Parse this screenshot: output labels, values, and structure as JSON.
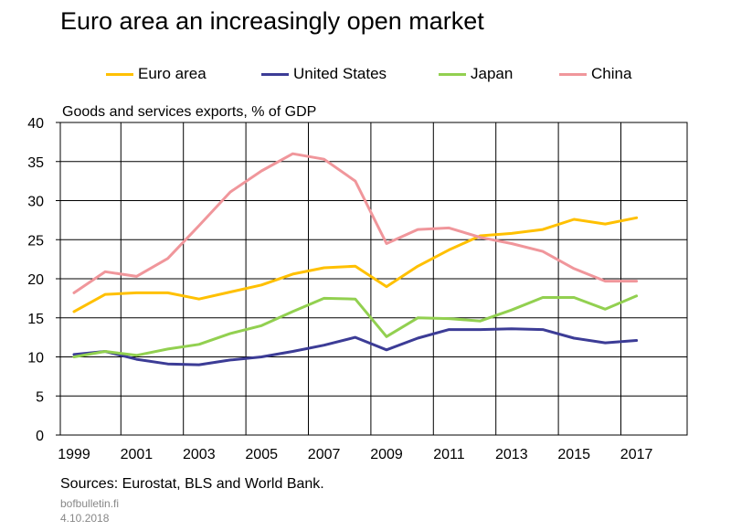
{
  "title": "Euro area an increasingly open market",
  "source_note": "Sources: Eurostat, BLS and World Bank.",
  "site": "bofbulletin.fi",
  "date": "4.10.2018",
  "chart_data": {
    "type": "line",
    "title": "Euro area an increasingly open market",
    "ylabel": "Goods and services exports, % of GDP",
    "xlabel": "",
    "ylim": [
      0,
      40
    ],
    "xlim": [
      1999,
      2018
    ],
    "yticks": [
      0,
      5,
      10,
      15,
      20,
      25,
      30,
      35,
      40
    ],
    "xticks": [
      1999,
      2001,
      2003,
      2005,
      2007,
      2009,
      2011,
      2013,
      2015,
      2017
    ],
    "grid": true,
    "legend_position": "top",
    "x": [
      1999,
      2000,
      2001,
      2002,
      2003,
      2004,
      2005,
      2006,
      2007,
      2008,
      2009,
      2010,
      2011,
      2012,
      2013,
      2014,
      2015,
      2016,
      2017
    ],
    "series": [
      {
        "name": "Euro area",
        "color": "#ffc000",
        "values": [
          15.8,
          18.0,
          18.2,
          18.2,
          17.4,
          18.3,
          19.2,
          20.6,
          21.4,
          21.6,
          19.0,
          21.6,
          23.7,
          25.5,
          25.8,
          26.3,
          27.6,
          27.0,
          27.8
        ]
      },
      {
        "name": "United States",
        "color": "#3c3c96",
        "values": [
          10.3,
          10.7,
          9.7,
          9.1,
          9.0,
          9.6,
          10.0,
          10.7,
          11.5,
          12.5,
          10.9,
          12.4,
          13.5,
          13.5,
          13.6,
          13.5,
          12.4,
          11.8,
          12.1
        ]
      },
      {
        "name": "Japan",
        "color": "#92d050",
        "values": [
          10.0,
          10.7,
          10.2,
          11.0,
          11.6,
          13.0,
          14.0,
          15.8,
          17.5,
          17.4,
          12.6,
          15.0,
          14.9,
          14.6,
          16.0,
          17.6,
          17.6,
          16.1,
          17.8
        ]
      },
      {
        "name": "China",
        "color": "#f0969b",
        "values": [
          18.2,
          20.9,
          20.3,
          22.6,
          26.8,
          31.1,
          33.8,
          36.0,
          35.3,
          32.5,
          24.5,
          26.3,
          26.5,
          25.3,
          24.5,
          23.5,
          21.3,
          19.7,
          19.7
        ]
      }
    ]
  }
}
